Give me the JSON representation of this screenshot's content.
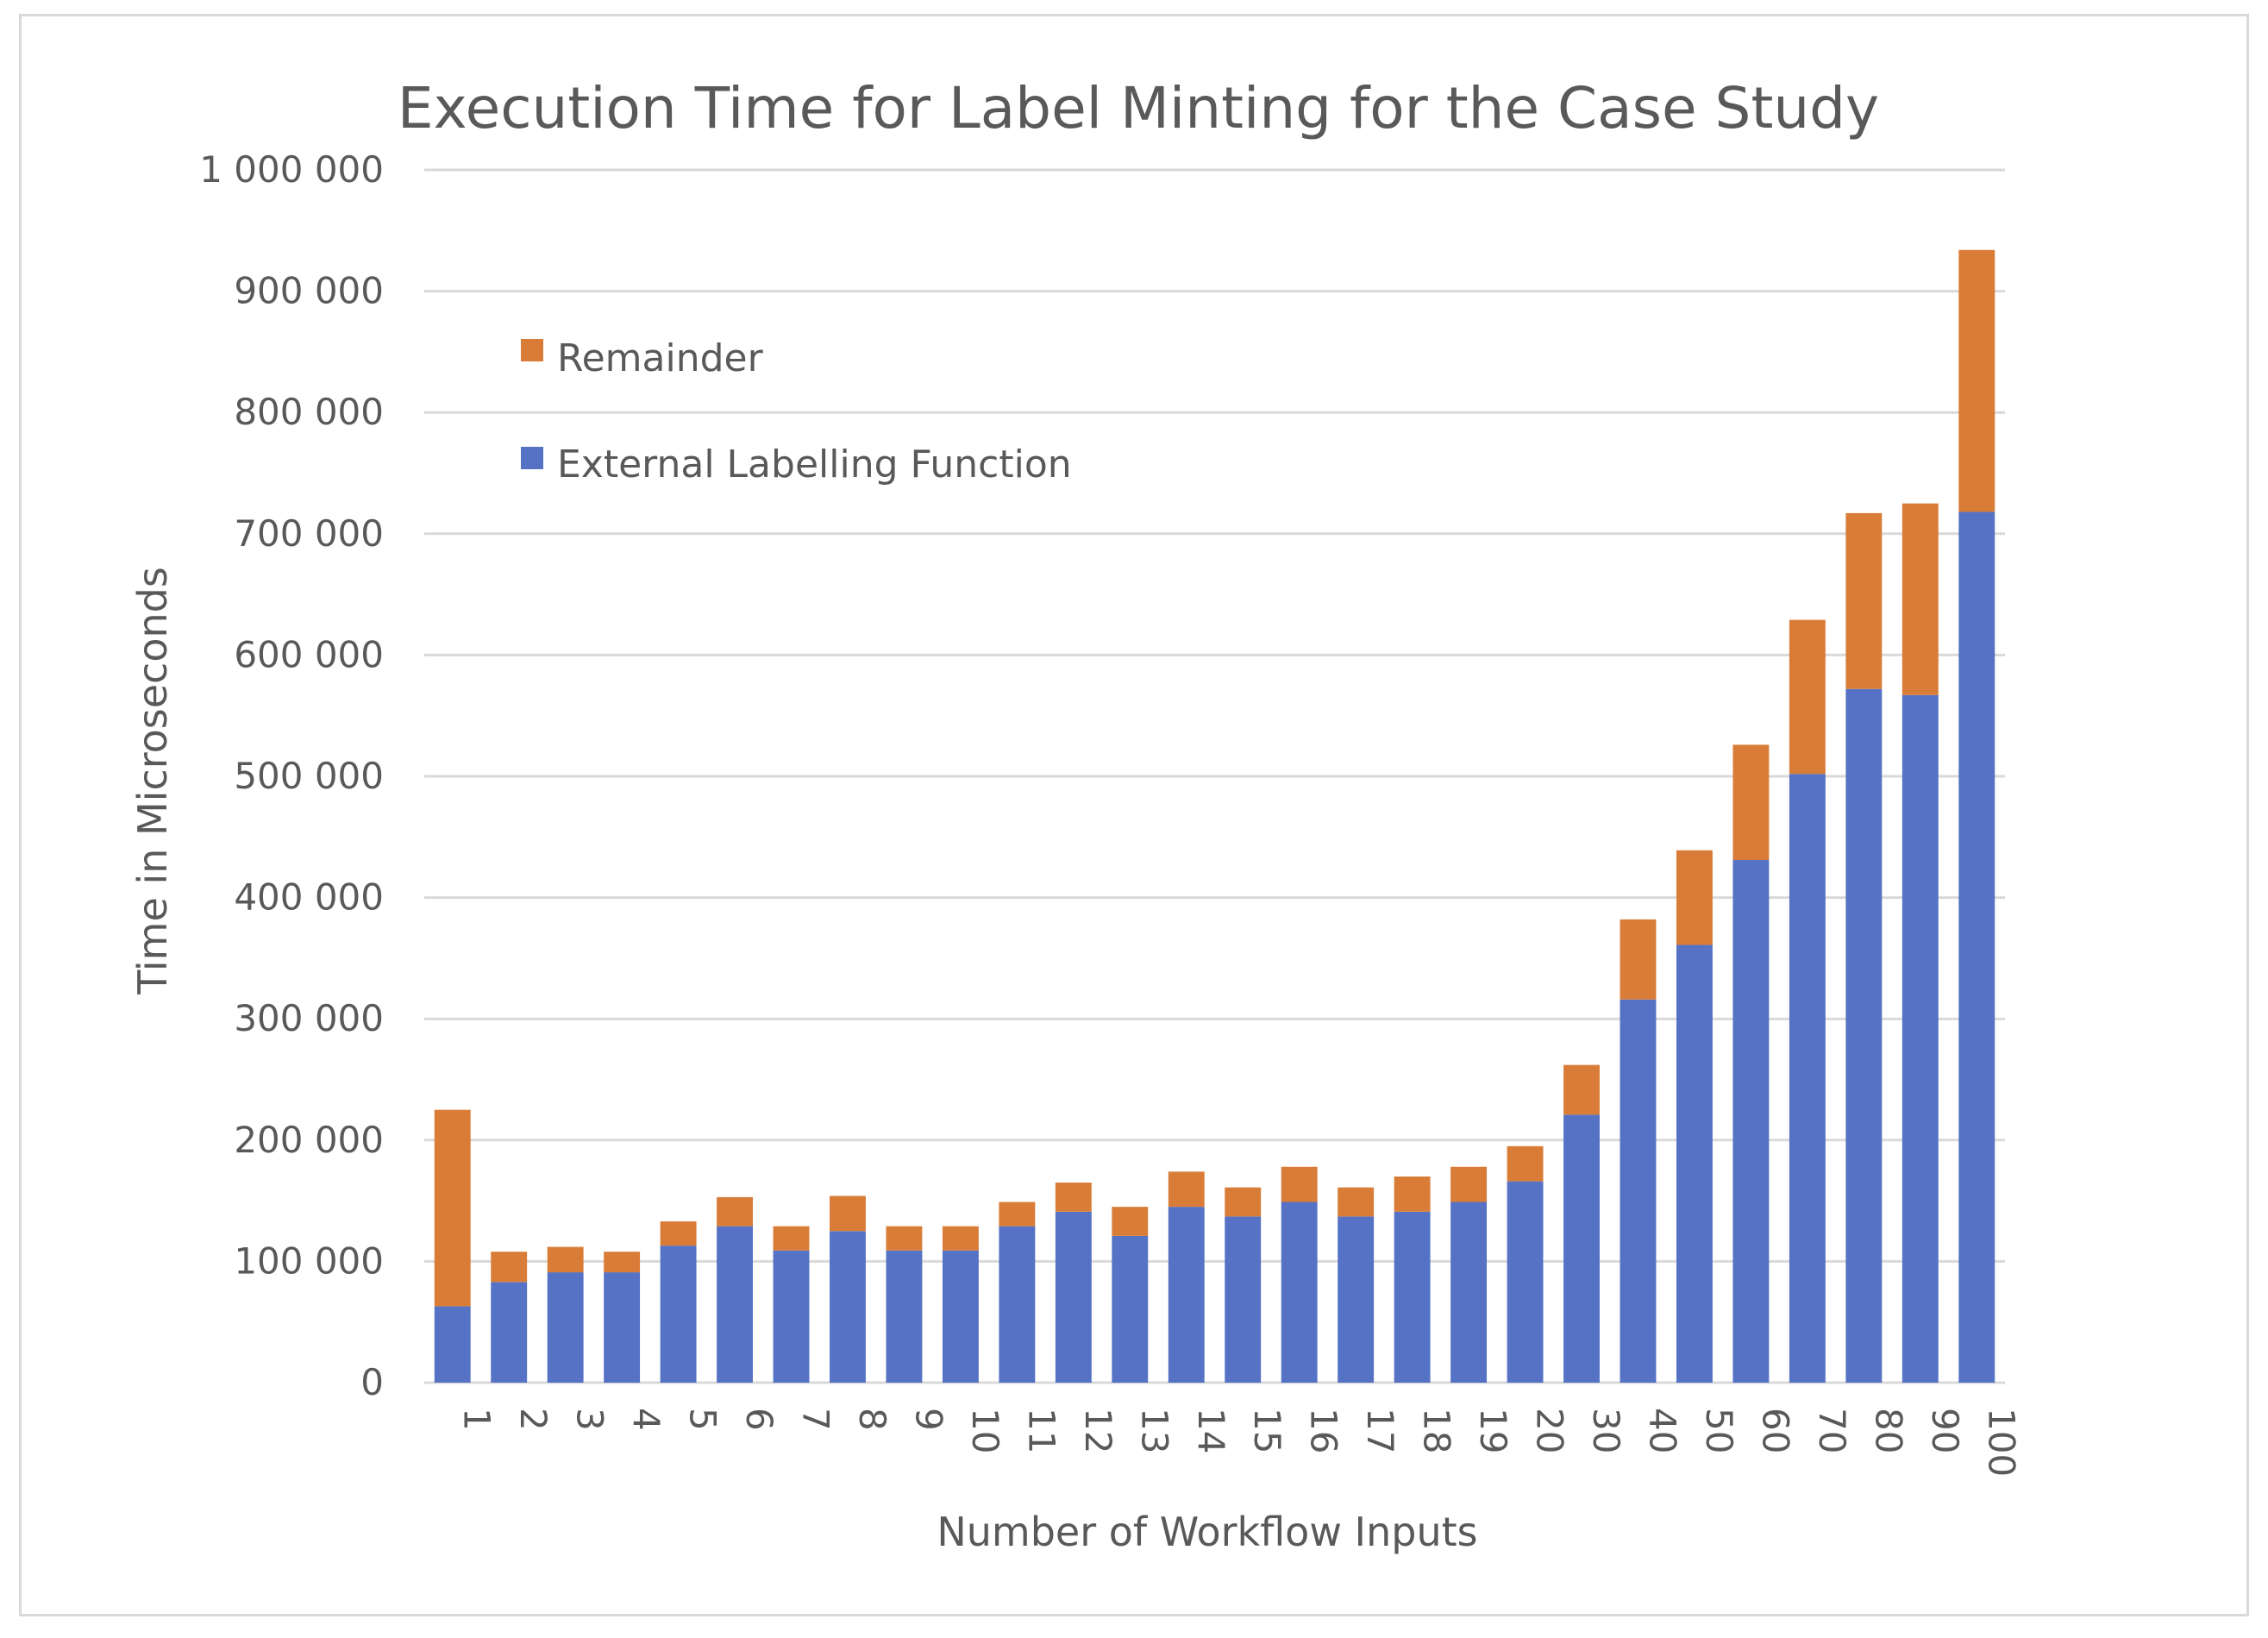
{
  "chart_data": {
    "type": "bar",
    "stacked": true,
    "title": "Execution Time for Label Minting for the Case Study",
    "xlabel": "Number of Workflow Inputs",
    "ylabel": "Time in Microseconds",
    "ylim": [
      0,
      1000000
    ],
    "yticks": [
      0,
      100000,
      200000,
      300000,
      400000,
      500000,
      600000,
      700000,
      800000,
      900000,
      1000000
    ],
    "ytick_labels": [
      "0",
      "100 000",
      "200 000",
      "300 000",
      "400 000",
      "500 000",
      "600 000",
      "700 000",
      "800 000",
      "900 000",
      "1 000 000"
    ],
    "categories": [
      "1",
      "2",
      "3",
      "4",
      "5",
      "6",
      "7",
      "8",
      "9",
      "10",
      "11",
      "12",
      "13",
      "14",
      "15",
      "16",
      "17",
      "18",
      "19",
      "20",
      "30",
      "40",
      "50",
      "60",
      "70",
      "80",
      "90",
      "100"
    ],
    "series": [
      {
        "name": "External Labelling Function",
        "color": "#5572c4",
        "values": [
          63000,
          83000,
          91000,
          91000,
          113000,
          129000,
          109000,
          125000,
          109000,
          109000,
          129000,
          141000,
          121000,
          145000,
          137000,
          149000,
          137000,
          141000,
          149000,
          166000,
          221000,
          316000,
          361000,
          431000,
          502000,
          572000,
          567000,
          718000
        ]
      },
      {
        "name": "Remainder",
        "color": "#d97c38",
        "values": [
          162000,
          25000,
          21000,
          17000,
          20000,
          24000,
          20000,
          29000,
          20000,
          20000,
          20000,
          24000,
          24000,
          29000,
          24000,
          29000,
          24000,
          29000,
          29000,
          29000,
          41000,
          66000,
          78000,
          95000,
          127000,
          145000,
          158000,
          216000
        ]
      }
    ],
    "legend": {
      "position": "top-left-inside",
      "entries": [
        "Remainder",
        "External Labelling Function"
      ]
    },
    "grid": true
  }
}
